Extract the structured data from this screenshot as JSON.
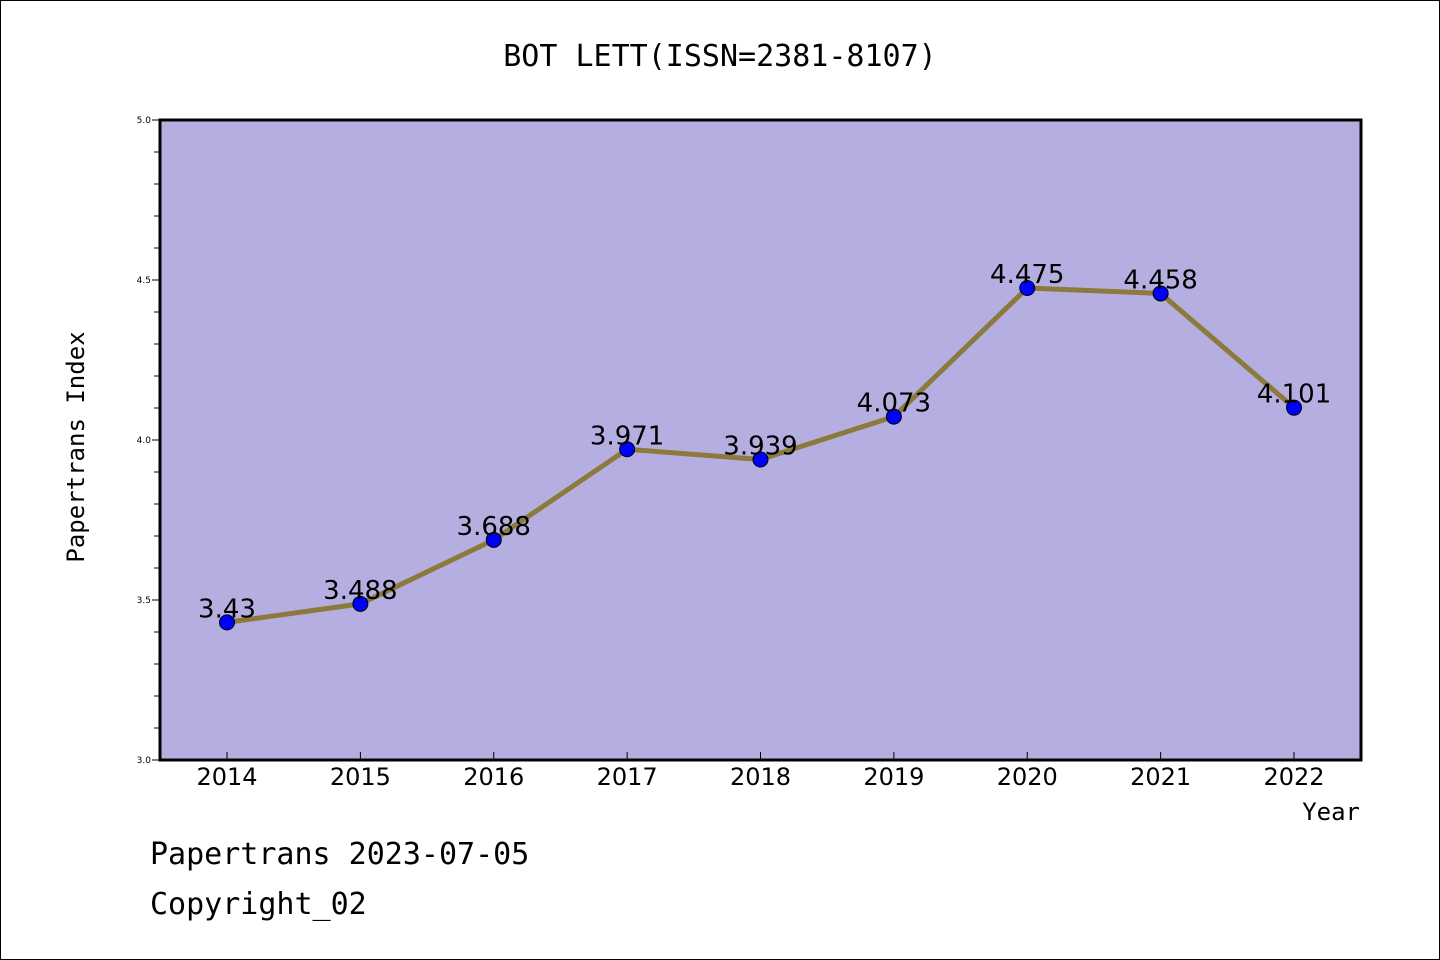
{
  "chart_data": {
    "type": "line",
    "title": "BOT LETT(ISSN=2381-8107)",
    "xlabel": "Year",
    "ylabel": "Papertrans Index",
    "x": [
      "2014",
      "2015",
      "2016",
      "2017",
      "2018",
      "2019",
      "2020",
      "2021",
      "2022"
    ],
    "series": [
      {
        "values": [
          3.43,
          3.488,
          3.688,
          3.971,
          3.939,
          4.073,
          4.475,
          4.458,
          4.101
        ],
        "labels": [
          "3.43",
          "3.488",
          "3.688",
          "3.971",
          "3.939",
          "4.073",
          "4.475",
          "4.458",
          "4.101"
        ]
      }
    ],
    "ylim": [
      3.0,
      5.0
    ],
    "yticks": [
      "3.0",
      "3.5",
      "4.0",
      "4.5",
      "5.0"
    ],
    "grid": false,
    "colors": {
      "plot_background": "#b5afe1",
      "line": "#8c7a3c",
      "marker": "#0000ff"
    }
  },
  "footer": {
    "line1": "Papertrans 2023-07-05",
    "line2": "Copyright_02"
  }
}
